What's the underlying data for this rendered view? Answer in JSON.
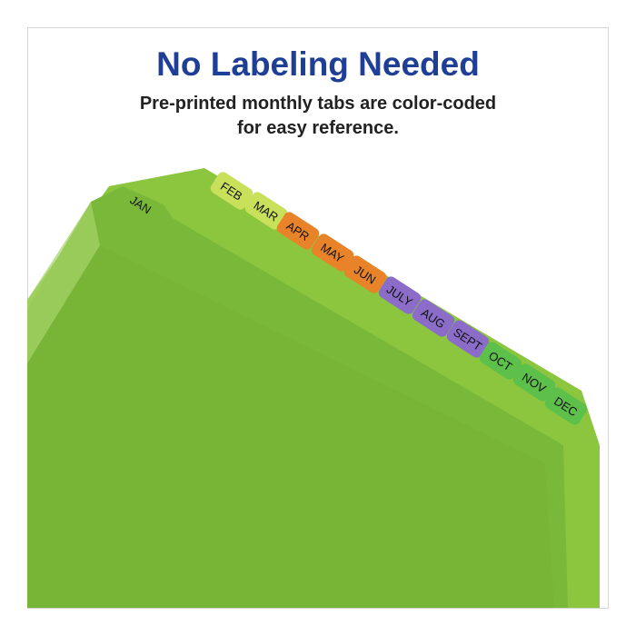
{
  "header": {
    "title": "No Labeling Needed",
    "subtitle": [
      "Pre-printed monthly tabs are color-coded",
      "for easy reference."
    ]
  },
  "tabs": [
    "JAN",
    "FEB",
    "MAR",
    "APR",
    "MAY",
    "JUN",
    "JULY",
    "AUG",
    "SEPT",
    "OCT",
    "NOV",
    "DEC"
  ]
}
